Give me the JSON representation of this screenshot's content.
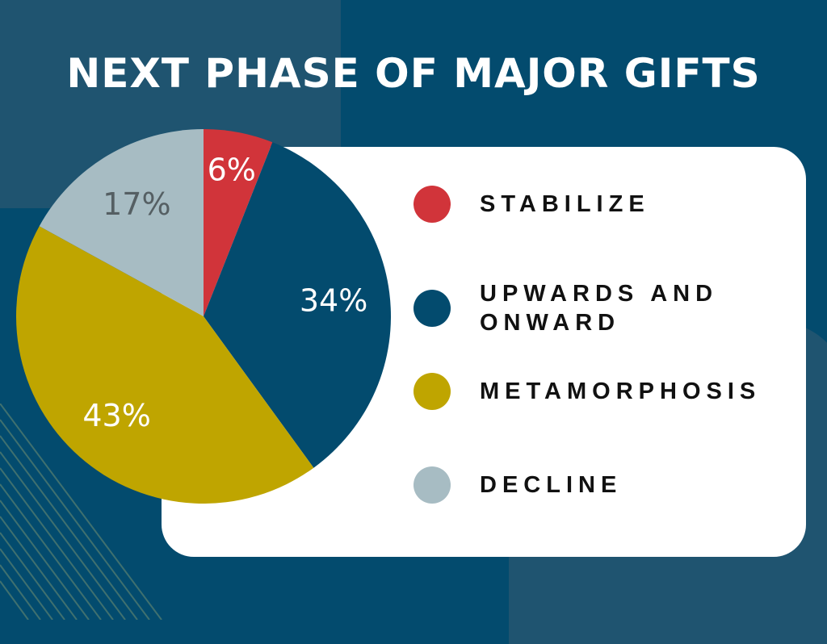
{
  "chart_data": {
    "type": "pie",
    "title": "NEXT PHASE OF MAJOR GIFTS",
    "slices": [
      {
        "name": "STABILIZE",
        "value": 6,
        "label": "6%",
        "color": "#d1343a",
        "label_color": "#ffffff"
      },
      {
        "name": "UPWARDS AND ONWARD",
        "value": 34,
        "label": "34%",
        "color": "#034b6e",
        "label_color": "#ffffff"
      },
      {
        "name": "METAMORPHOSIS",
        "value": 43,
        "label": "43%",
        "color": "#bfa500",
        "label_color": "#ffffff"
      },
      {
        "name": "DECLINE",
        "value": 17,
        "label": "17%",
        "color": "#a7bcc3",
        "label_color": "#555f63"
      }
    ],
    "start": "top",
    "direction": "clockwise",
    "legend": "right"
  },
  "colors": {
    "background": "#034b6e",
    "panel": "#1f5470",
    "card": "#ffffff"
  }
}
